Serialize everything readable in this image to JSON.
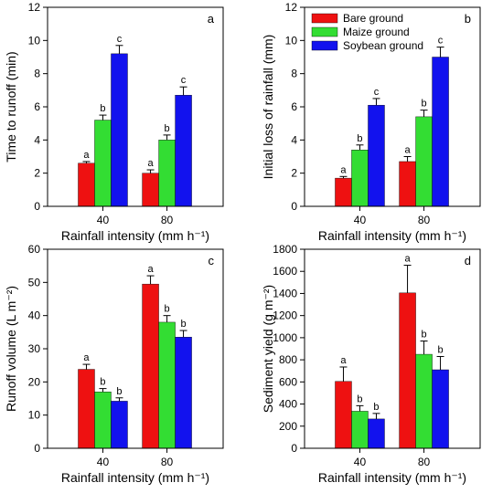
{
  "colors": {
    "bare": "#ee1111",
    "maize": "#33dd33",
    "soybean": "#1212ee"
  },
  "legend": [
    {
      "label": "Bare ground",
      "color": "#ee1111"
    },
    {
      "label": "Maize ground",
      "color": "#33dd33"
    },
    {
      "label": "Soybean ground",
      "color": "#1212ee"
    }
  ],
  "chart_data": [
    {
      "type": "bar",
      "panel_label": "a",
      "categories": [
        "40",
        "80"
      ],
      "xlabel": "Rainfall intensity (mm h⁻¹)",
      "ylabel": "Time to runoff (min)",
      "ylim": [
        0,
        12
      ],
      "yticks": [
        "0",
        "2",
        "4",
        "6",
        "8",
        "10",
        "12"
      ],
      "series": [
        {
          "name": "Bare ground",
          "values": [
            2.6,
            2.0
          ],
          "errors": [
            0.1,
            0.2
          ],
          "letters": [
            "a",
            "a"
          ]
        },
        {
          "name": "Maize ground",
          "values": [
            5.2,
            4.0
          ],
          "errors": [
            0.3,
            0.3
          ],
          "letters": [
            "b",
            "b"
          ]
        },
        {
          "name": "Soybean ground",
          "values": [
            9.2,
            6.7
          ],
          "errors": [
            0.5,
            0.5
          ],
          "letters": [
            "c",
            "c"
          ]
        }
      ]
    },
    {
      "type": "bar",
      "panel_label": "b",
      "categories": [
        "40",
        "80"
      ],
      "xlabel": "Rainfall intensity (mm h⁻¹)",
      "ylabel": "Initial loss of rainfall (mm)",
      "ylim": [
        0,
        12
      ],
      "yticks": [
        "0",
        "2",
        "4",
        "6",
        "8",
        "10",
        "12"
      ],
      "legend_position": "top-left",
      "series": [
        {
          "name": "Bare ground",
          "values": [
            1.7,
            2.7
          ],
          "errors": [
            0.1,
            0.3
          ],
          "letters": [
            "a",
            "a"
          ]
        },
        {
          "name": "Maize ground",
          "values": [
            3.4,
            5.4
          ],
          "errors": [
            0.3,
            0.4
          ],
          "letters": [
            "b",
            "b"
          ]
        },
        {
          "name": "Soybean ground",
          "values": [
            6.1,
            9.0
          ],
          "errors": [
            0.4,
            0.6
          ],
          "letters": [
            "c",
            "c"
          ]
        }
      ]
    },
    {
      "type": "bar",
      "panel_label": "c",
      "categories": [
        "40",
        "80"
      ],
      "xlabel": "Rainfall intensity (mm h⁻¹)",
      "ylabel": "Runoff volume (L m⁻²)",
      "ylim": [
        0,
        60
      ],
      "yticks": [
        "0",
        "10",
        "20",
        "30",
        "40",
        "50",
        "60"
      ],
      "series": [
        {
          "name": "Bare ground",
          "values": [
            23.8,
            49.5
          ],
          "errors": [
            1.5,
            2.5
          ],
          "letters": [
            "a",
            "a"
          ]
        },
        {
          "name": "Maize ground",
          "values": [
            17.0,
            38.0
          ],
          "errors": [
            1.0,
            2.0
          ],
          "letters": [
            "b",
            "b"
          ]
        },
        {
          "name": "Soybean ground",
          "values": [
            14.2,
            33.5
          ],
          "errors": [
            1.0,
            2.0
          ],
          "letters": [
            "b",
            "b"
          ]
        }
      ]
    },
    {
      "type": "bar",
      "panel_label": "d",
      "categories": [
        "40",
        "80"
      ],
      "xlabel": "Rainfall intensity (mm h⁻¹)",
      "ylabel": "Sediment yield (g m⁻²)",
      "ylim": [
        0,
        1800
      ],
      "yticks": [
        "0",
        "200",
        "400",
        "600",
        "800",
        "1000",
        "1200",
        "1400",
        "1600",
        "1800"
      ],
      "series": [
        {
          "name": "Bare ground",
          "values": [
            605,
            1405
          ],
          "errors": [
            130,
            250
          ],
          "letters": [
            "a",
            "a"
          ]
        },
        {
          "name": "Maize ground",
          "values": [
            335,
            850
          ],
          "errors": [
            50,
            120
          ],
          "letters": [
            "b",
            "b"
          ]
        },
        {
          "name": "Soybean ground",
          "values": [
            265,
            710
          ],
          "errors": [
            50,
            120
          ],
          "letters": [
            "b",
            "b"
          ]
        }
      ]
    }
  ]
}
